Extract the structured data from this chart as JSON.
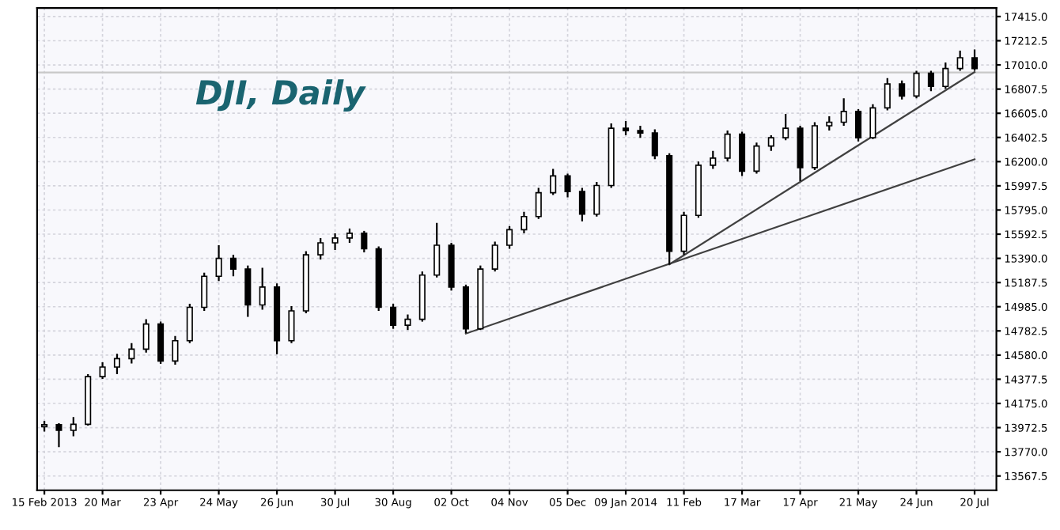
{
  "chart_data": {
    "type": "candlestick",
    "title": "DJI, Daily",
    "categories": [
      "15 Feb 2013",
      null,
      null,
      null,
      "20 Mar",
      null,
      null,
      null,
      "23 Apr",
      null,
      null,
      null,
      "24 May",
      null,
      null,
      null,
      "26 Jun",
      null,
      null,
      null,
      "30 Jul",
      null,
      null,
      null,
      "30 Aug",
      null,
      null,
      null,
      "02 Oct",
      null,
      null,
      null,
      "04 Nov",
      null,
      null,
      null,
      "05 Dec",
      null,
      null,
      null,
      "09 Jan 2014",
      null,
      null,
      null,
      "11 Feb",
      null,
      null,
      null,
      "17 Mar",
      null,
      null,
      null,
      "17 Apr",
      null,
      null,
      null,
      "21 May",
      null,
      null,
      null,
      "24 Jun",
      null,
      null,
      null,
      "20 Jul"
    ],
    "ohlc": [
      [
        13980,
        14030,
        13940,
        13997
      ],
      [
        13997,
        14010,
        13809,
        13950
      ],
      [
        13950,
        14060,
        13900,
        14000
      ],
      [
        14000,
        14420,
        13990,
        14400
      ],
      [
        14400,
        14520,
        14380,
        14480
      ],
      [
        14480,
        14590,
        14420,
        14550
      ],
      [
        14550,
        14680,
        14510,
        14630
      ],
      [
        14630,
        14880,
        14600,
        14840
      ],
      [
        14840,
        14860,
        14507,
        14530
      ],
      [
        14530,
        14740,
        14500,
        14700
      ],
      [
        14700,
        15010,
        14680,
        14980
      ],
      [
        14980,
        15270,
        14950,
        15240
      ],
      [
        15240,
        15500,
        15200,
        15390
      ],
      [
        15390,
        15420,
        15240,
        15300
      ],
      [
        15300,
        15330,
        14900,
        15000
      ],
      [
        15000,
        15311,
        14960,
        15150
      ],
      [
        15150,
        15180,
        14587,
        14700
      ],
      [
        14700,
        14990,
        14680,
        14950
      ],
      [
        14950,
        15450,
        14930,
        15420
      ],
      [
        15420,
        15560,
        15380,
        15520
      ],
      [
        15520,
        15600,
        15460,
        15560
      ],
      [
        15560,
        15640,
        15520,
        15600
      ],
      [
        15600,
        15620,
        15440,
        15470
      ],
      [
        15470,
        15490,
        14950,
        14980
      ],
      [
        14980,
        15010,
        14800,
        14830
      ],
      [
        14830,
        14920,
        14790,
        14880
      ],
      [
        14880,
        15280,
        14860,
        15250
      ],
      [
        15250,
        15687,
        15230,
        15500
      ],
      [
        15500,
        15520,
        15120,
        15150
      ],
      [
        15150,
        15170,
        14764,
        14800
      ],
      [
        14800,
        15330,
        14790,
        15300
      ],
      [
        15300,
        15530,
        15280,
        15500
      ],
      [
        15500,
        15660,
        15470,
        15630
      ],
      [
        15630,
        15780,
        15600,
        15740
      ],
      [
        15740,
        15980,
        15720,
        15940
      ],
      [
        15940,
        16140,
        15920,
        16080
      ],
      [
        16080,
        16100,
        15900,
        15950
      ],
      [
        15950,
        15980,
        15700,
        15760
      ],
      [
        15760,
        16030,
        15740,
        16000
      ],
      [
        16000,
        16520,
        15980,
        16480
      ],
      [
        16480,
        16540,
        16420,
        16460
      ],
      [
        16460,
        16500,
        16400,
        16440
      ],
      [
        16440,
        16470,
        16220,
        16250
      ],
      [
        16250,
        16270,
        15338,
        15450
      ],
      [
        15450,
        15780,
        15420,
        15750
      ],
      [
        15750,
        16200,
        15730,
        16170
      ],
      [
        16170,
        16290,
        16140,
        16230
      ],
      [
        16230,
        16460,
        16200,
        16430
      ],
      [
        16430,
        16450,
        16080,
        16120
      ],
      [
        16120,
        16360,
        16100,
        16330
      ],
      [
        16330,
        16420,
        16290,
        16400
      ],
      [
        16400,
        16600,
        16380,
        16480
      ],
      [
        16480,
        16500,
        16036,
        16150
      ],
      [
        16150,
        16530,
        16130,
        16500
      ],
      [
        16500,
        16580,
        16460,
        16530
      ],
      [
        16530,
        16730,
        16500,
        16620
      ],
      [
        16620,
        16640,
        16370,
        16400
      ],
      [
        16400,
        16680,
        16390,
        16650
      ],
      [
        16650,
        16900,
        16630,
        16850
      ],
      [
        16850,
        16880,
        16720,
        16750
      ],
      [
        16750,
        16960,
        16730,
        16940
      ],
      [
        16940,
        16960,
        16790,
        16830
      ],
      [
        16830,
        17030,
        16810,
        16980
      ],
      [
        16980,
        17130,
        16960,
        17070
      ],
      [
        17070,
        17140,
        16960,
        16980
      ]
    ],
    "color": "#000000",
    "series": [
      {
        "type": "line",
        "values": [
          null,
          null,
          null,
          null,
          null,
          null,
          null,
          null,
          null,
          null,
          null,
          null,
          null,
          null,
          null,
          null,
          null,
          null,
          null,
          null,
          null,
          null,
          null,
          null,
          null,
          null,
          null,
          null,
          null,
          14760,
          null,
          null,
          null,
          null,
          null,
          null,
          null,
          null,
          null,
          null,
          null,
          null,
          null,
          null,
          null,
          null,
          null,
          null,
          null,
          null,
          null,
          null,
          null,
          null,
          null,
          null,
          null,
          null,
          null,
          null,
          null,
          null,
          null,
          null,
          16220
        ],
        "color": "#404040"
      },
      {
        "type": "line",
        "values": [
          null,
          null,
          null,
          null,
          null,
          null,
          null,
          null,
          null,
          null,
          null,
          null,
          null,
          null,
          null,
          null,
          null,
          null,
          null,
          null,
          null,
          null,
          null,
          null,
          null,
          null,
          null,
          null,
          null,
          null,
          null,
          null,
          null,
          null,
          null,
          null,
          null,
          null,
          null,
          null,
          null,
          null,
          null,
          15340,
          null,
          null,
          null,
          null,
          null,
          null,
          null,
          null,
          null,
          null,
          null,
          null,
          null,
          null,
          null,
          null,
          null,
          null,
          null,
          null,
          16950
        ],
        "color": "#404040"
      }
    ],
    "ref_lines": [
      {
        "axis": "y",
        "value": 16947,
        "label": null,
        "color": "#c8c8c8"
      }
    ],
    "ylim": [
      13448,
      17487
    ],
    "yticks": [
      {
        "value": 13567.5,
        "label": "13567.5"
      },
      {
        "value": 13770,
        "label": "13770.0"
      },
      {
        "value": 13972.5,
        "label": "13972.5"
      },
      {
        "value": 14175,
        "label": "14175.0"
      },
      {
        "value": 14377.5,
        "label": "14377.5"
      },
      {
        "value": 14580,
        "label": "14580.0"
      },
      {
        "value": 14782.5,
        "label": "14782.5"
      },
      {
        "value": 14985,
        "label": "14985.0"
      },
      {
        "value": 15187.5,
        "label": "15187.5"
      },
      {
        "value": 15390,
        "label": "15390.0"
      },
      {
        "value": 15592.5,
        "label": "15592.5"
      },
      {
        "value": 15795,
        "label": "15795.0"
      },
      {
        "value": 15997.5,
        "label": "15997.5"
      },
      {
        "value": 16200,
        "label": "16200.0"
      },
      {
        "value": 16402.5,
        "label": "16402.5"
      },
      {
        "value": 16605,
        "label": "16605.0"
      },
      {
        "value": 16807.5,
        "label": "16807.5"
      },
      {
        "value": 17010,
        "label": "17010.0"
      },
      {
        "value": 17212.5,
        "label": "17212.5"
      },
      {
        "value": 17415,
        "label": "17415.0"
      }
    ],
    "grid": true,
    "legend": false
  }
}
